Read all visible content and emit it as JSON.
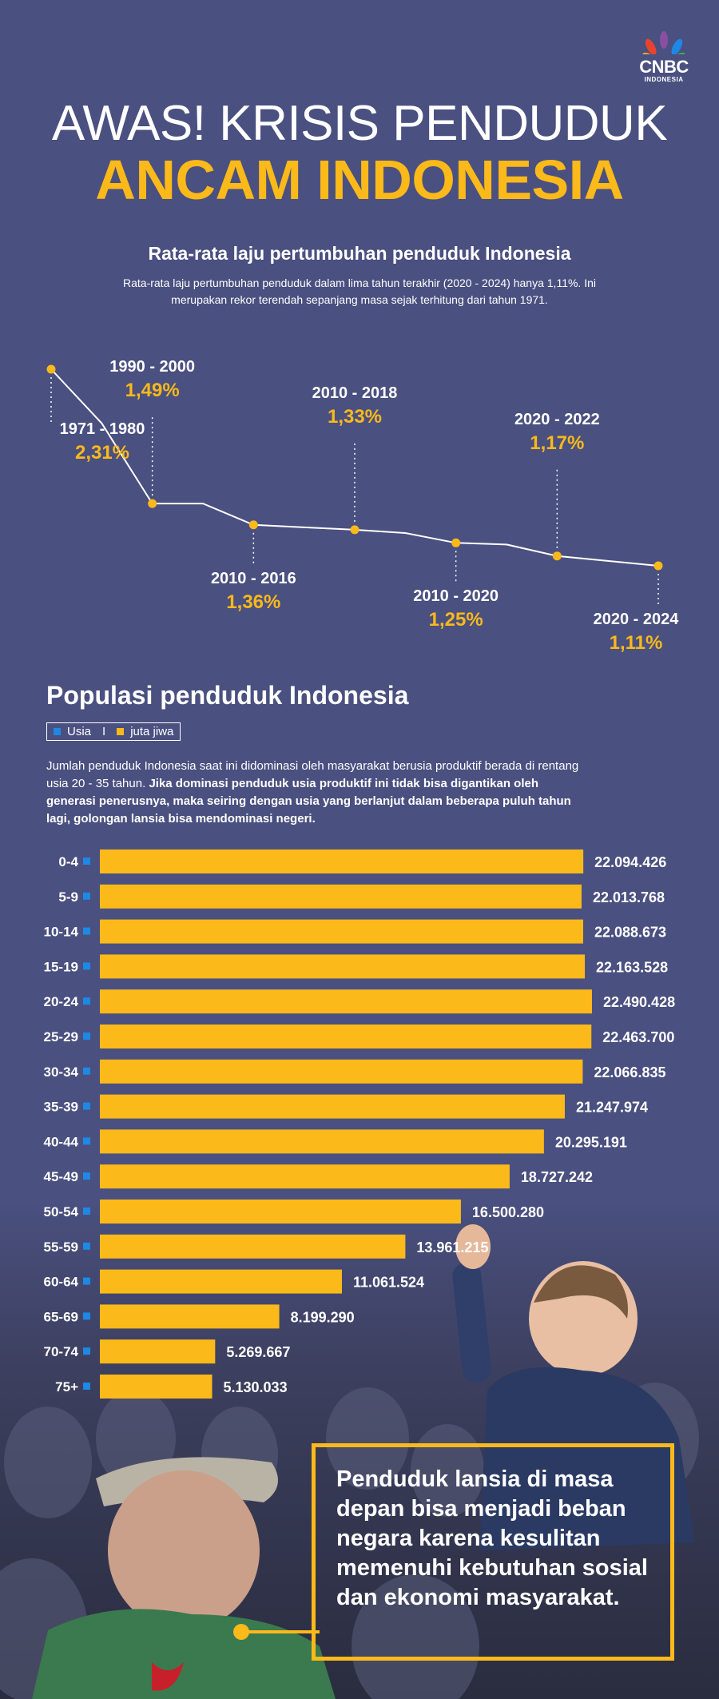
{
  "brand": {
    "name": "CNBC",
    "sub": "INDONESIA"
  },
  "header": {
    "line1": "AWAS! KRISIS PENDUDUK",
    "line2": "ANCAM INDONESIA"
  },
  "growth": {
    "title": "Rata-rata laju pertumbuhan penduduk Indonesia",
    "description": "Rata-rata laju pertumbuhan penduduk dalam lima tahun terakhir (2020 - 2024) hanya 1,11%. Ini merupakan rekor terendah sepanjang masa sejak terhitung dari tahun 1971."
  },
  "population": {
    "title": "Populasi penduduk Indonesia",
    "legend": {
      "age": "Usia",
      "sep": "I",
      "unit": "juta jiwa",
      "age_color": "#1e88e5",
      "unit_color": "#fbb91a"
    },
    "desc_plain": "Jumlah penduduk Indonesia saat ini didominasi oleh masyarakat berusia produktif berada di rentang usia 20 - 35 tahun. ",
    "desc_bold": "Jika dominasi penduduk usia produktif ini tidak bisa digantikan oleh generasi penerusnya, maka seiring dengan usia yang berlanjut dalam beberapa puluh tahun lagi, golongan lansia bisa mendominasi negeri."
  },
  "callout": {
    "text": "Penduduk lansia di masa depan bisa menjadi beban negara karena kesulitan memenuhi kebutuhan sosial dan ekonomi masyarakat."
  },
  "colors": {
    "accent": "#fbb91a",
    "background": "#4a5080",
    "marker": "#1e88e5"
  },
  "chart_data": [
    {
      "type": "line",
      "title": "Rata-rata laju pertumbuhan penduduk Indonesia",
      "labeled_points": [
        {
          "period": "1971 - 1980",
          "value": 2.31,
          "label": "2,31%"
        },
        {
          "period": "1990 - 2000",
          "value": 1.49,
          "label": "1,49%"
        },
        {
          "period": "2010 - 2016",
          "value": 1.36,
          "label": "1,36%"
        },
        {
          "period": "2010 - 2018",
          "value": 1.33,
          "label": "1,33%"
        },
        {
          "period": "2010 - 2020",
          "value": 1.25,
          "label": "1,25%"
        },
        {
          "period": "2020 - 2022",
          "value": 1.17,
          "label": "1,17%"
        },
        {
          "period": "2020 - 2024",
          "value": 1.11,
          "label": "1,11%"
        }
      ],
      "path_values": [
        2.31,
        1.98,
        1.49,
        1.49,
        1.36,
        1.345,
        1.33,
        1.31,
        1.25,
        1.24,
        1.17,
        1.14,
        1.11
      ],
      "marker_indices": [
        0,
        2,
        4,
        6,
        8,
        10,
        12
      ]
    },
    {
      "type": "bar",
      "title": "Populasi penduduk Indonesia",
      "orientation": "horizontal",
      "categories": [
        "0-4",
        "5-9",
        "10-14",
        "15-19",
        "20-24",
        "25-29",
        "30-34",
        "35-39",
        "40-44",
        "45-49",
        "50-54",
        "55-59",
        "60-64",
        "65-69",
        "70-74",
        "75+"
      ],
      "values": [
        22094426,
        22013768,
        22088673,
        22163528,
        22490428,
        22463700,
        22066835,
        21247974,
        20295191,
        18727242,
        16500280,
        13961215,
        11061524,
        8199290,
        5269667,
        5130033
      ],
      "value_labels": [
        "22.094.426",
        "22.013.768",
        "22.088.673",
        "22.163.528",
        "22.490.428",
        "22.463.700",
        "22.066.835",
        "21.247.974",
        "20.295.191",
        "18.727.242",
        "16.500.280",
        "13.961.215",
        "11.061.524",
        "8.199.290",
        "5.269.667",
        "5.130.033"
      ],
      "unit": "juta jiwa"
    }
  ]
}
